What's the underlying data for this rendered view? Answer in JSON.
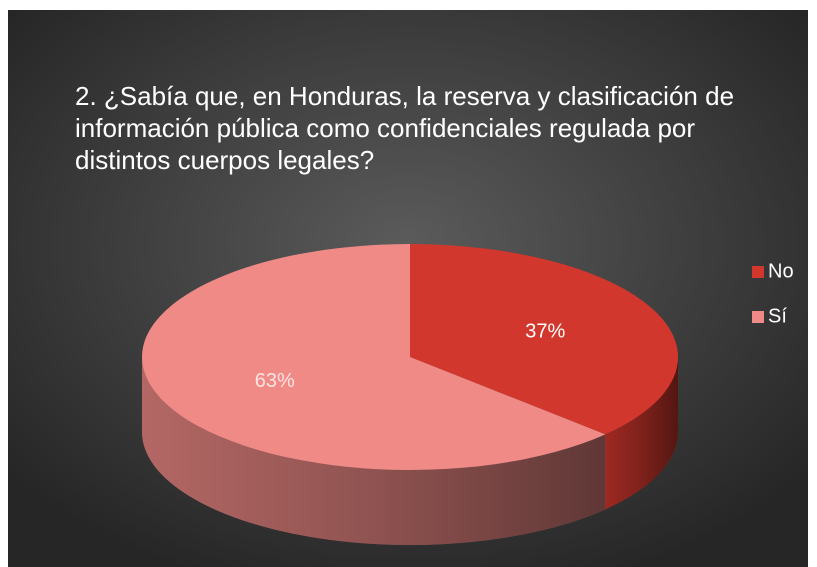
{
  "chart_data": {
    "type": "pie",
    "title": "2. ¿Sabía que, en Honduras, la reserva y clasificación de información pública como confidenciales regulada por distintos cuerpos legales?",
    "categories": [
      "No",
      "Sí"
    ],
    "values": [
      37,
      63
    ],
    "value_labels": [
      "37%",
      "63%"
    ],
    "colors": [
      "#d2372d",
      "#ef8a86"
    ],
    "legend": "right"
  }
}
